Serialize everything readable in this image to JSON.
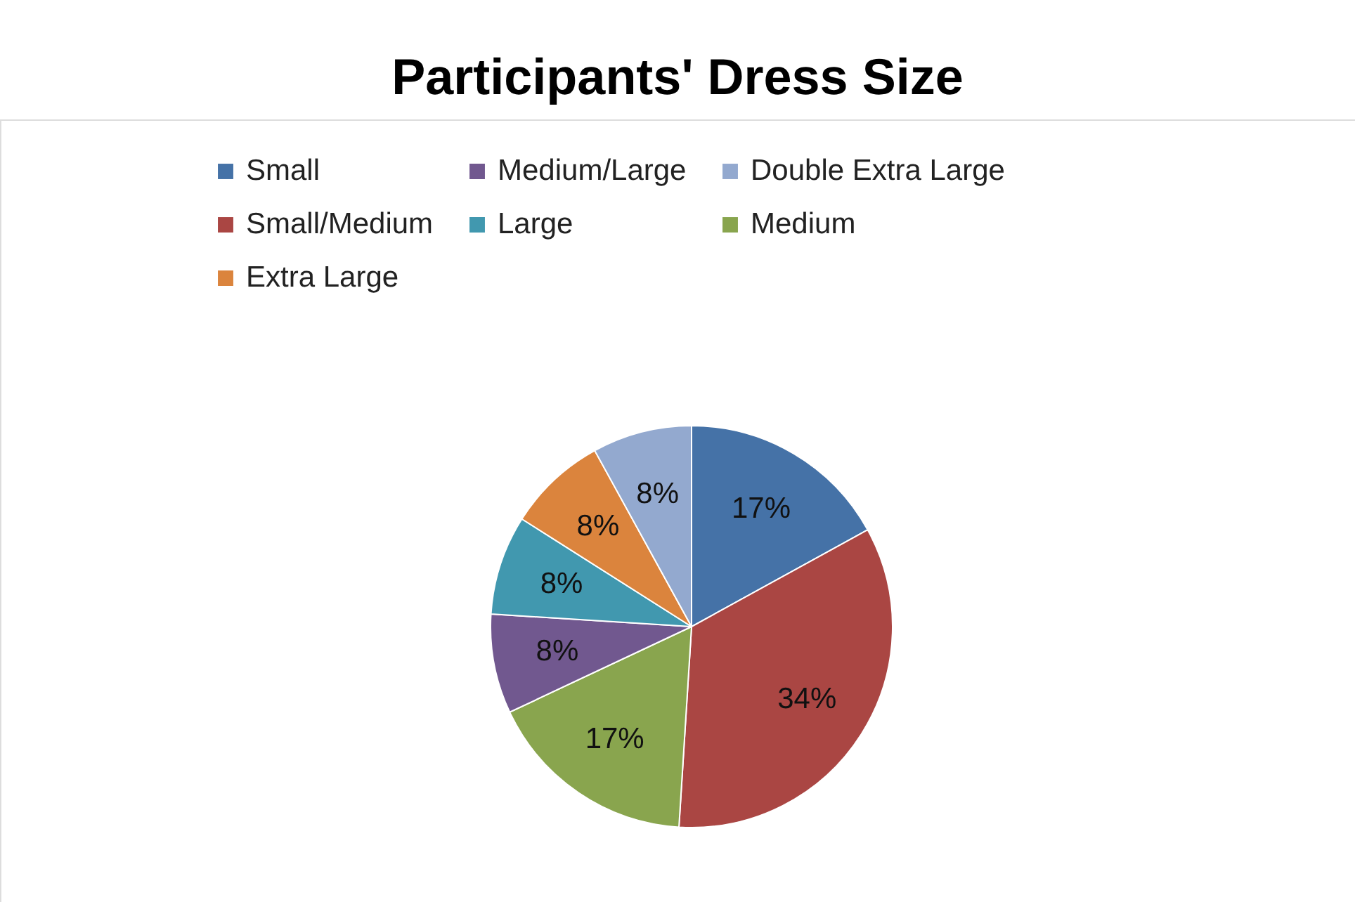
{
  "chart_data": {
    "type": "pie",
    "title": "Participants' Dress Size",
    "categories": [
      "Small",
      "Small/Medium",
      "Medium",
      "Medium/Large",
      "Large",
      "Extra Large",
      "Double Extra Large"
    ],
    "values": [
      17,
      34,
      17,
      8,
      8,
      8,
      8
    ],
    "value_labels": [
      "17%",
      "34%",
      "17%",
      "8%",
      "8%",
      "8%",
      "8%"
    ],
    "colors": [
      "#4572a7",
      "#aa4643",
      "#89a54e",
      "#71588f",
      "#4198af",
      "#db843d",
      "#93a9cf"
    ],
    "legend": "top"
  }
}
